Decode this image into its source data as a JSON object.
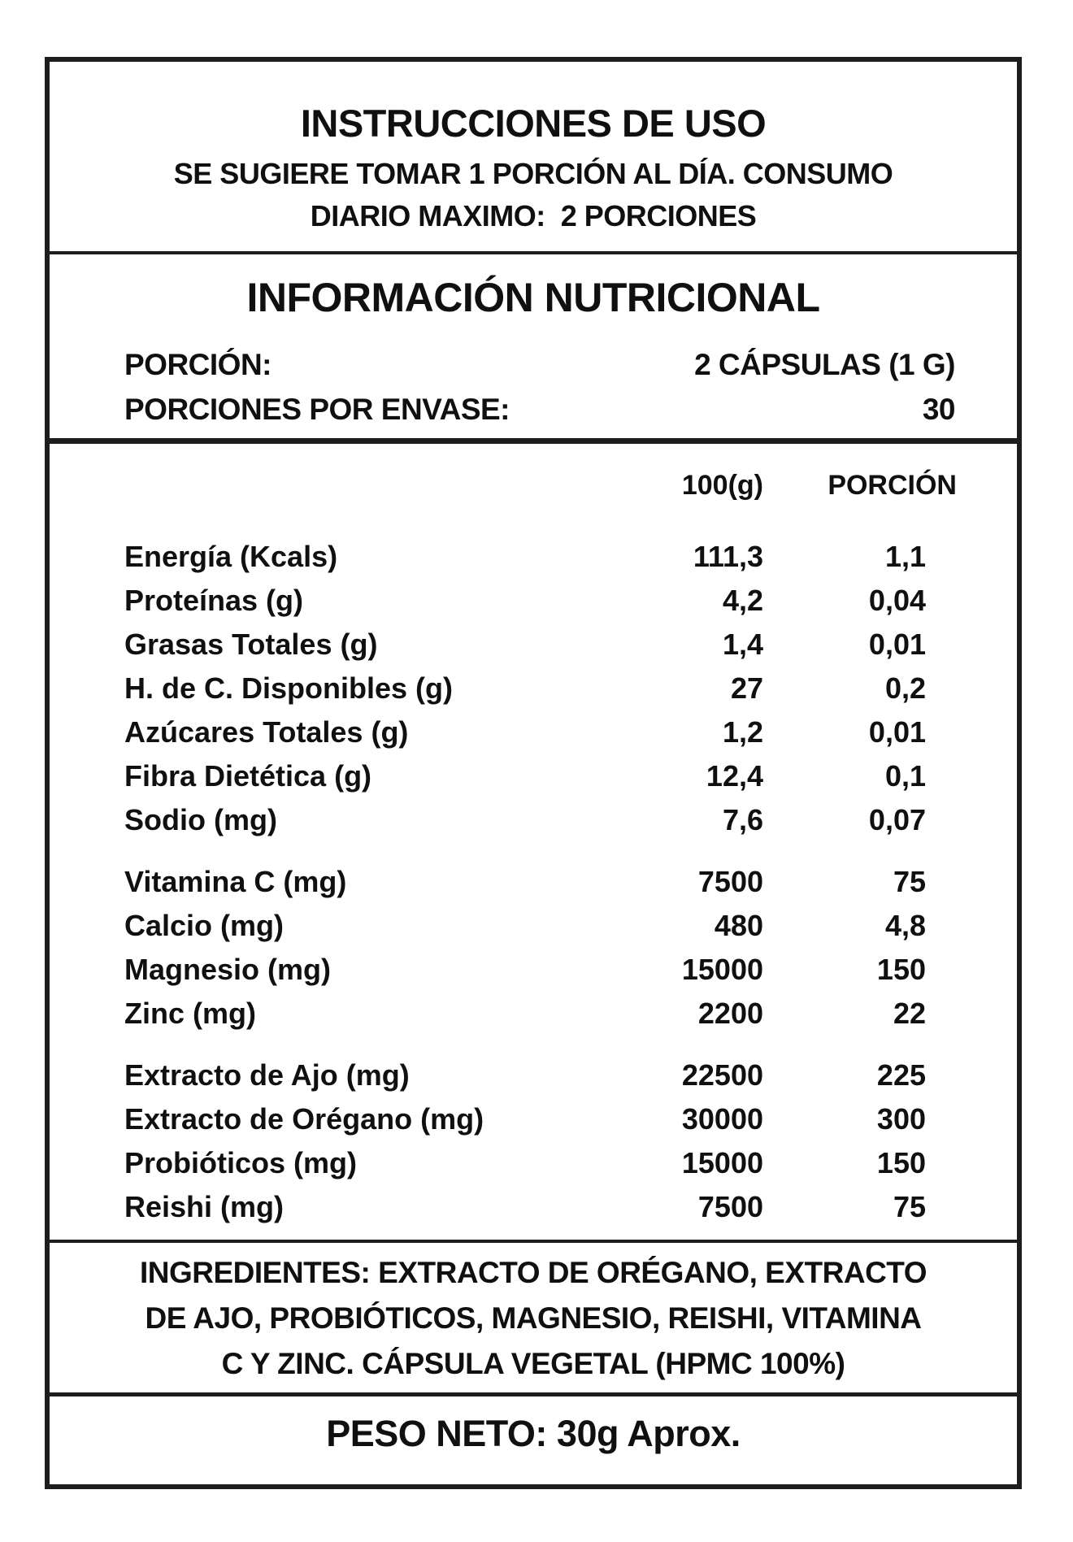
{
  "instructions": {
    "title": "INSTRUCCIONES DE USO",
    "line1": "SE SUGIERE TOMAR 1 PORCIÓN AL DÍA. CONSUMO",
    "line2": "DIARIO MAXIMO:  2 PORCIONES"
  },
  "nutrition_header": {
    "title": "INFORMACIÓN NUTRICIONAL",
    "serving": {
      "label": "PORCIÓN:",
      "value": "2 CÁPSULAS (1 G)"
    },
    "servings_per_container": {
      "label": "PORCIONES POR ENVASE:",
      "value": "30"
    }
  },
  "table": {
    "col1_header": "100(g)",
    "col2_header": "PORCIÓN",
    "groups": [
      {
        "rows": [
          {
            "name": "Energía (Kcals)",
            "per100": "111,3",
            "portion": "1,1"
          },
          {
            "name": "Proteínas (g)",
            "per100": "4,2",
            "portion": "0,04"
          },
          {
            "name": "Grasas Totales (g)",
            "per100": "1,4",
            "portion": "0,01"
          },
          {
            "name": "H. de C. Disponibles (g)",
            "per100": "27",
            "portion": "0,2"
          },
          {
            "name": "Azúcares Totales (g)",
            "per100": "1,2",
            "portion": "0,01"
          },
          {
            "name": "Fibra Dietética (g)",
            "per100": "12,4",
            "portion": "0,1"
          },
          {
            "name": "Sodio (mg)",
            "per100": "7,6",
            "portion": "0,07"
          }
        ]
      },
      {
        "rows": [
          {
            "name": "Vitamina C (mg)",
            "per100": "7500",
            "portion": "75"
          },
          {
            "name": "Calcio (mg)",
            "per100": "480",
            "portion": "4,8"
          },
          {
            "name": "Magnesio (mg)",
            "per100": "15000",
            "portion": "150"
          },
          {
            "name": "Zinc (mg)",
            "per100": "2200",
            "portion": "22"
          }
        ]
      },
      {
        "rows": [
          {
            "name": "Extracto de Ajo (mg)",
            "per100": "22500",
            "portion": "225"
          },
          {
            "name": "Extracto de Orégano (mg)",
            "per100": "30000",
            "portion": "300"
          },
          {
            "name": "Probióticos (mg)",
            "per100": "15000",
            "portion": "150"
          },
          {
            "name": "Reishi (mg)",
            "per100": "7500",
            "portion": "75"
          }
        ]
      }
    ]
  },
  "ingredients": {
    "lines": [
      "INGREDIENTES: EXTRACTO DE ORÉGANO, EXTRACTO",
      "DE AJO, PROBIÓTICOS, MAGNESIO, REISHI, VITAMINA",
      "C Y ZINC. CÁPSULA VEGETAL (HPMC 100%)"
    ]
  },
  "net_weight": {
    "text": "PESO NETO: 30g Aprox."
  }
}
